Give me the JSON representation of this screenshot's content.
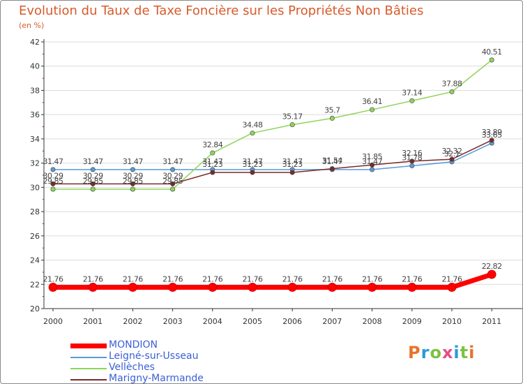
{
  "header": {
    "title": "Evolution du Taux de Taxe Foncière sur les Propriétés Non Bâties",
    "unit": "(en %)"
  },
  "logo": {
    "text": "Proxiti",
    "colors": [
      "#e8732a",
      "#2a9ad8",
      "#7cc242",
      "#e84a8c",
      "#2a9ad8",
      "#7cc242",
      "#e8732a"
    ]
  },
  "chart_data": {
    "type": "line",
    "title": "Evolution du Taux de Taxe Foncière sur les Propriétés Non Bâties",
    "ylabel": "(en %)",
    "xlabel": "",
    "ylim": [
      20,
      42
    ],
    "yticks": [
      20,
      22,
      24,
      26,
      28,
      30,
      32,
      34,
      36,
      38,
      40,
      42
    ],
    "categories": [
      "2000",
      "2001",
      "2002",
      "2003",
      "2004",
      "2005",
      "2006",
      "2007",
      "2008",
      "2009",
      "2010",
      "2011"
    ],
    "series": [
      {
        "name": "MONDION",
        "color": "#ff0000",
        "emphasis": true,
        "values": [
          21.76,
          21.76,
          21.76,
          21.76,
          21.76,
          21.76,
          21.76,
          21.76,
          21.76,
          21.76,
          21.76,
          22.82
        ],
        "labels": [
          "21.76",
          "21.76",
          "21.76",
          "21.76",
          "21.76",
          "21.76",
          "21.76",
          "21.76",
          "21.76",
          "21.76",
          "21.76",
          "22.82"
        ]
      },
      {
        "name": "Leigné-sur-Usseau",
        "color": "#5a9ad8",
        "emphasis": false,
        "values": [
          31.47,
          31.47,
          31.47,
          31.47,
          31.47,
          31.47,
          31.47,
          31.47,
          31.47,
          31.78,
          32.1,
          33.65
        ],
        "labels": [
          "31.47",
          "31.47",
          "31.47",
          "31.47",
          "31.47",
          "31.47",
          "31.47",
          "31.47",
          "31.47",
          "31.78",
          "32.1",
          "33.65"
        ]
      },
      {
        "name": "Vellèches",
        "color": "#8ed45a",
        "emphasis": false,
        "values": [
          29.85,
          29.85,
          29.85,
          29.85,
          32.84,
          34.48,
          35.17,
          35.7,
          36.41,
          37.14,
          37.88,
          40.51
        ],
        "labels": [
          "29.85",
          "29.85",
          "29.85",
          "29.85",
          "32.84",
          "34.48",
          "35.17",
          "35.7",
          "36.41",
          "37.14",
          "37.88",
          "40.51"
        ]
      },
      {
        "name": "Marigny-Marmande",
        "color": "#7a2a2a",
        "emphasis": false,
        "values": [
          30.29,
          30.29,
          30.29,
          30.29,
          31.23,
          31.23,
          31.23,
          31.54,
          31.85,
          32.16,
          32.32,
          33.89
        ],
        "labels": [
          "30.29",
          "30.29",
          "30.29",
          "30.29",
          "31.23",
          "31.23",
          "31.23",
          "31.54",
          "31.85",
          "32.16",
          "32.32",
          "33.89"
        ]
      }
    ],
    "legend_position": "bottom-left"
  }
}
